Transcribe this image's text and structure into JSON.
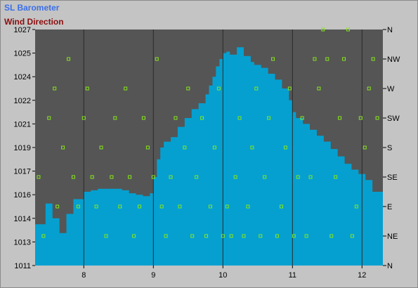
{
  "legend": {
    "barometer_label": "SL Barometer",
    "wind_label": "Wind Direction"
  },
  "colors": {
    "plot_background": "#555555",
    "barometer_fill": "#05a0d0",
    "wind_marker": "#86e61a",
    "gridline": "#2a2a2a",
    "frame": "#c4c4c4"
  },
  "chart_data": {
    "type": "area",
    "title": "",
    "xlabel": "",
    "ylabel": "",
    "x_ticks": [
      "8",
      "9",
      "10",
      "11",
      "12"
    ],
    "x_tick_values": [
      8,
      9,
      10,
      11,
      12
    ],
    "xlim": [
      7.3,
      12.3
    ],
    "left_axis": {
      "label": "SL Barometer",
      "ticks": [
        "1027",
        "1025",
        "1024",
        "1022",
        "1021",
        "1019",
        "1017",
        "1016",
        "1014",
        "1013",
        "1011"
      ],
      "ylim": [
        1011,
        1027
      ]
    },
    "right_axis": {
      "label": "Wind Direction",
      "ticks": [
        "N",
        "NW",
        "W",
        "SW",
        "S",
        "SE",
        "E",
        "NE",
        "N"
      ]
    },
    "grid": true,
    "series": [
      {
        "name": "SL Barometer",
        "type": "area",
        "x": [
          7.3,
          7.45,
          7.55,
          7.65,
          7.75,
          7.85,
          8.0,
          8.1,
          8.2,
          8.4,
          8.55,
          8.65,
          8.75,
          8.85,
          8.95,
          9.0,
          9.05,
          9.1,
          9.15,
          9.25,
          9.35,
          9.45,
          9.55,
          9.65,
          9.75,
          9.8,
          9.85,
          9.9,
          9.95,
          10.0,
          10.05,
          10.1,
          10.2,
          10.3,
          10.4,
          10.45,
          10.55,
          10.65,
          10.75,
          10.85,
          10.95,
          11.0,
          11.05,
          11.15,
          11.25,
          11.35,
          11.45,
          11.55,
          11.65,
          11.75,
          11.85,
          11.95,
          12.05,
          12.15,
          12.3
        ],
        "y": [
          1013.8,
          1015.2,
          1014.2,
          1013.2,
          1014.5,
          1015.5,
          1016.0,
          1016.1,
          1016.2,
          1016.2,
          1016.1,
          1015.9,
          1015.8,
          1015.7,
          1015.9,
          1017.0,
          1018.2,
          1019.0,
          1019.4,
          1019.7,
          1020.4,
          1021.0,
          1021.6,
          1022.0,
          1022.6,
          1023.2,
          1023.8,
          1024.5,
          1025.0,
          1025.4,
          1025.5,
          1025.3,
          1025.8,
          1025.2,
          1024.8,
          1024.6,
          1024.4,
          1024.0,
          1023.6,
          1023.0,
          1022.2,
          1021.4,
          1021.0,
          1020.6,
          1020.2,
          1019.8,
          1019.4,
          1018.9,
          1018.4,
          1017.9,
          1017.5,
          1017.2,
          1016.8,
          1016.0,
          1014.0
        ]
      },
      {
        "name": "Wind Direction",
        "type": "scatter",
        "x": [
          7.35,
          7.42,
          7.5,
          7.58,
          7.62,
          7.7,
          7.78,
          7.85,
          7.92,
          8.0,
          8.05,
          8.12,
          8.18,
          8.25,
          8.32,
          8.4,
          8.45,
          8.52,
          8.6,
          8.66,
          8.72,
          8.8,
          8.86,
          8.92,
          9.0,
          9.05,
          9.12,
          9.18,
          9.25,
          9.32,
          9.38,
          9.45,
          9.5,
          9.56,
          9.62,
          9.7,
          9.76,
          9.82,
          9.88,
          9.94,
          10.0,
          10.06,
          10.12,
          10.18,
          10.24,
          10.3,
          10.36,
          10.42,
          10.48,
          10.54,
          10.6,
          10.66,
          10.72,
          10.78,
          10.84,
          10.9,
          10.96,
          11.02,
          11.08,
          11.14,
          11.2,
          11.26,
          11.32,
          11.38,
          11.44,
          11.5,
          11.56,
          11.62,
          11.68,
          11.74,
          11.8,
          11.86,
          11.92,
          11.98,
          12.04,
          12.1,
          12.16,
          12.22
        ],
        "y": [
          3,
          1,
          5,
          6,
          2,
          4,
          7,
          3,
          2,
          5,
          6,
          3,
          2,
          4,
          1,
          3,
          5,
          2,
          6,
          3,
          1,
          2,
          5,
          4,
          3,
          7,
          2,
          1,
          3,
          5,
          2,
          4,
          6,
          1,
          3,
          5,
          1,
          2,
          4,
          6,
          1,
          2,
          1,
          3,
          5,
          1,
          2,
          4,
          6,
          1,
          3,
          5,
          7,
          1,
          2,
          4,
          6,
          1,
          3,
          5,
          1,
          3,
          7,
          6,
          8,
          7,
          1,
          3,
          5,
          7,
          8,
          1,
          2,
          5,
          4,
          6,
          7,
          5
        ]
      }
    ]
  }
}
